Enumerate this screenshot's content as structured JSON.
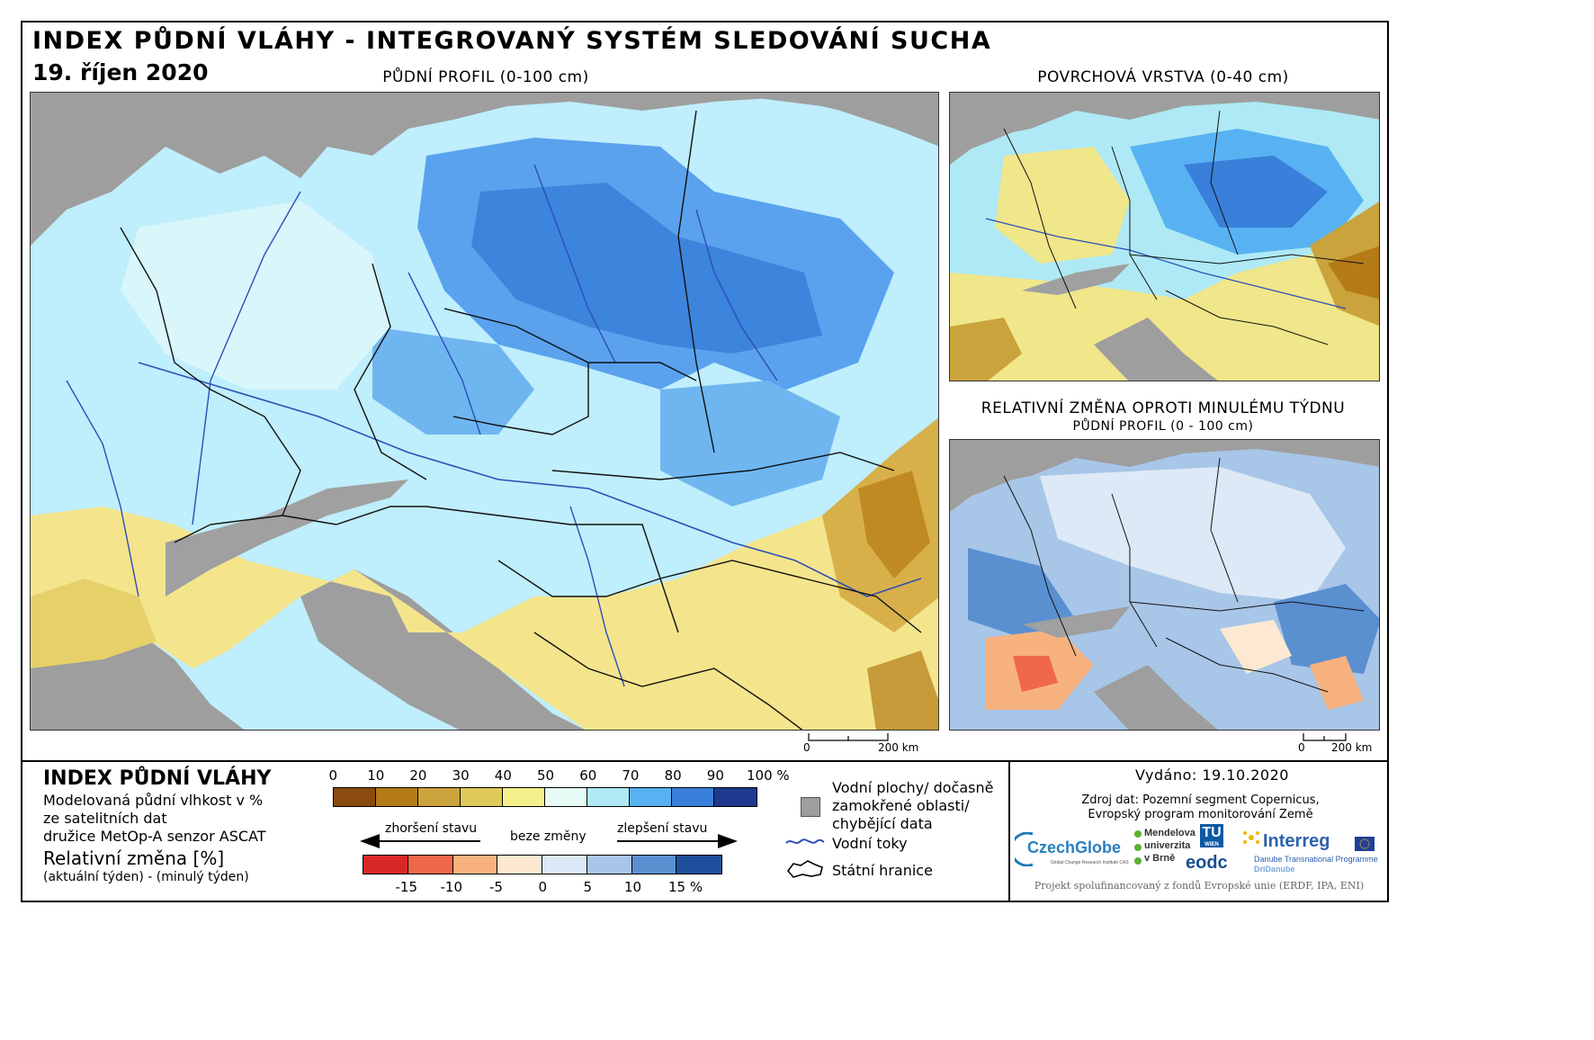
{
  "header": {
    "title": "INDEX PŮDNÍ VLÁHY - INTEGROVANÝ SYSTÉM SLEDOVÁNÍ SUCHA",
    "date": "19. říjen 2020"
  },
  "maps": {
    "main_title": "PŮDNÍ PROFIL (0-100 cm)",
    "surface_title": "POVRCHOVÁ VRSTVA (0-40 cm)",
    "change_title": "RELATIVNÍ ZMĚNA OPROTI MINULÉMU TÝDNU",
    "change_subtitle": "PŮDNÍ PROFIL (0 - 100 cm)",
    "scale_zero": "0",
    "scale_label": "200 km"
  },
  "legend": {
    "title": "INDEX PŮDNÍ VLÁHY",
    "line1": "Modelovaná půdní vlhkost v %",
    "line2": "ze satelitních dat",
    "line3": "družice MetOp-A senzor ASCAT",
    "rel_title": "Relativní změna [%]",
    "rel_sub": "(aktuální týden) - (minulý týden)",
    "index_ticks": [
      "0",
      "10",
      "20",
      "30",
      "40",
      "50",
      "60",
      "70",
      "80",
      "90",
      "100 %"
    ],
    "index_colors": [
      "#8b4a0e",
      "#b57b16",
      "#caa33d",
      "#e0c958",
      "#f5ef8c",
      "#e6fbf6",
      "#aee9f5",
      "#58b2f2",
      "#3a7fd9",
      "#1d3a8f"
    ],
    "change_labels": {
      "worse": "zhoršení stavu",
      "nochange": "beze změny",
      "better": "zlepšení stavu"
    },
    "change_ticks": [
      "-15",
      "-10",
      "-5",
      "0",
      "5",
      "10",
      "15 %"
    ],
    "change_colors": [
      "#d9282a",
      "#f0674a",
      "#f8b27f",
      "#fde9d2",
      "#dde9f6",
      "#a8c6e8",
      "#5a8fd0",
      "#1f4f9c"
    ],
    "symbols": {
      "water": "Vodní plochy/ dočasně",
      "water2": "zamokřené oblasti/",
      "water3": "chybějící data",
      "rivers": "Vodní toky",
      "borders": "Státní hranice"
    }
  },
  "credits": {
    "issued": "Vydáno: 19.10.2020",
    "source1": "Zdroj dat: Pozemní segment Copernicus,",
    "source2": "Evropský program monitorování Země",
    "footer": "Projekt spolufinancovaný z fondů Evropské unie (ERDF, IPA, ENI)",
    "logos": {
      "czechglobe": "CzechGlobe",
      "czechglobe_sub": "Global Change Research Institute CAS",
      "mendel1": "Mendelova",
      "mendel2": "univerzita",
      "mendel3": "v Brně",
      "tu": "TU",
      "tu_sub": "WIEN",
      "eodc": "eodc",
      "interreg": "Interreg",
      "interreg_sub": "Danube Transnational Programme",
      "dridanube": "DriDanube"
    }
  }
}
